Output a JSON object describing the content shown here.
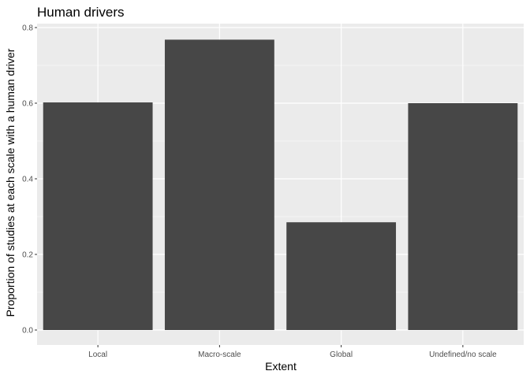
{
  "chart_data": {
    "type": "bar",
    "title": "Human drivers",
    "xlabel": "Extent",
    "ylabel": "Proportion of studies at each scale with a human driver",
    "categories": [
      "Local",
      "Macro-scale",
      "Global",
      "Undefined/no scale"
    ],
    "values": [
      0.602,
      0.768,
      0.285,
      0.6
    ],
    "ylim": [
      0,
      0.8
    ],
    "yticks": [
      "0.0",
      "0.2",
      "0.4",
      "0.6",
      "0.8"
    ],
    "grid": true,
    "legend": "none",
    "colors": {
      "panel": "#EBEBEB",
      "bar": "#474747",
      "grid": "#FFFFFF",
      "text": "#000000",
      "tick_text": "#4D4D4D",
      "tick": "#333333"
    }
  }
}
